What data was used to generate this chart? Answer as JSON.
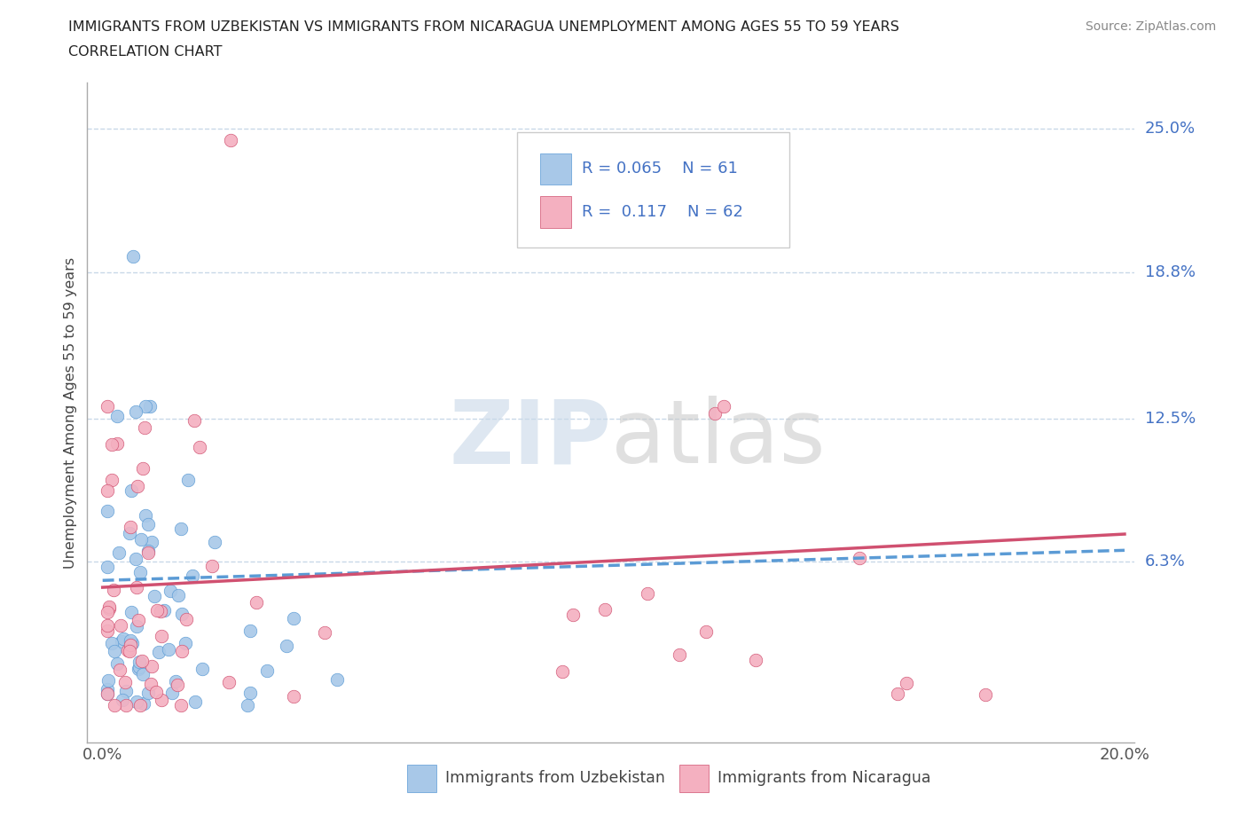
{
  "title_line1": "IMMIGRANTS FROM UZBEKISTAN VS IMMIGRANTS FROM NICARAGUA UNEMPLOYMENT AMONG AGES 55 TO 59 YEARS",
  "title_line2": "CORRELATION CHART",
  "source": "Source: ZipAtlas.com",
  "ylabel": "Unemployment Among Ages 55 to 59 years",
  "color_uzbekistan": "#a8c8e8",
  "color_nicaragua": "#f4b0c0",
  "trendline_uzbekistan_color": "#5b9bd5",
  "trendline_nicaragua_color": "#d05070",
  "R_uzbekistan": 0.065,
  "N_uzbekistan": 61,
  "R_nicaragua": 0.117,
  "N_nicaragua": 62,
  "ytick_vals": [
    0.063,
    0.125,
    0.188,
    0.25
  ],
  "ytick_labels": [
    "6.3%",
    "12.5%",
    "18.8%",
    "25.0%"
  ],
  "grid_color": "#c8d8e8",
  "watermark_zip_color": "#c8d8e8",
  "watermark_atlas_color": "#c8c8c8"
}
